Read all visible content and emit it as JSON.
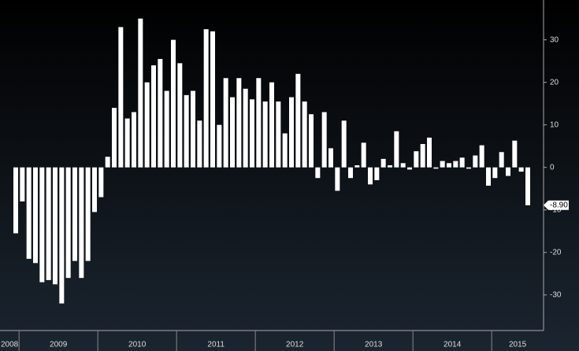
{
  "chart_data": {
    "type": "bar",
    "categories": [
      null,
      null,
      null,
      null,
      null,
      null,
      null,
      null,
      null,
      null,
      null,
      null,
      null,
      null,
      null,
      null,
      null,
      null,
      null,
      null,
      null,
      null,
      null,
      null,
      null,
      null,
      null,
      null,
      null,
      null,
      null,
      null,
      null,
      null,
      null,
      null,
      null,
      null,
      null,
      null,
      null,
      null,
      null,
      null,
      null,
      null,
      null,
      null,
      null,
      null,
      null,
      null,
      null,
      null,
      null,
      null,
      null,
      null,
      null,
      null,
      null,
      null,
      null,
      null,
      null,
      null,
      null,
      null,
      null,
      null,
      null,
      null,
      null,
      null,
      null,
      null,
      null,
      null,
      null
    ],
    "values": [
      -15.5,
      -8,
      -21.5,
      -22.5,
      -27,
      -26.5,
      -27.5,
      -32,
      -26,
      -22,
      -26,
      -22,
      -10.5,
      -7,
      2.5,
      14,
      33,
      11.5,
      13,
      35,
      20,
      24,
      25.5,
      18,
      30,
      24.5,
      17,
      18,
      11,
      32.5,
      32,
      10,
      21,
      16.5,
      21,
      18.5,
      16,
      21,
      15.5,
      20,
      15.5,
      8,
      16.5,
      22,
      15.5,
      12.5,
      -2.5,
      13,
      4.5,
      -5.5,
      11,
      -2.5,
      0.5,
      5.8,
      -4,
      -3,
      2,
      0.5,
      8.5,
      1,
      -0.5,
      3.8,
      5.5,
      7,
      -0.3,
      1.5,
      1,
      1.5,
      2.3,
      -0.3,
      2.8,
      5.2,
      -4.3,
      -2.5,
      3.6,
      -2,
      6.3,
      -1,
      -8.9
    ],
    "value_labels": [
      null,
      null,
      null,
      null,
      null,
      null,
      null,
      null,
      null,
      null,
      null,
      null,
      null,
      null,
      null,
      null,
      null,
      null,
      null,
      null,
      null,
      null,
      null,
      null,
      null,
      null,
      null,
      null,
      null,
      null,
      null,
      null,
      null,
      null,
      null,
      null,
      null,
      null,
      null,
      null,
      null,
      null,
      null,
      null,
      null,
      null,
      null,
      null,
      null,
      null,
      null,
      null,
      null,
      null,
      null,
      null,
      null,
      null,
      null,
      null,
      null,
      null,
      null,
      null,
      null,
      null,
      null,
      null,
      null,
      null,
      null,
      null,
      null,
      null,
      null,
      null,
      null,
      null,
      "-8.90"
    ],
    "color": "#ffffff",
    "x_labels": [
      "2008",
      "2009",
      "2010",
      "2011",
      "2012",
      "2013",
      "2014",
      "2015"
    ],
    "ylim": [
      -38,
      39
    ],
    "yticks": [
      -30,
      -20,
      -10,
      0,
      10,
      20,
      30
    ]
  }
}
